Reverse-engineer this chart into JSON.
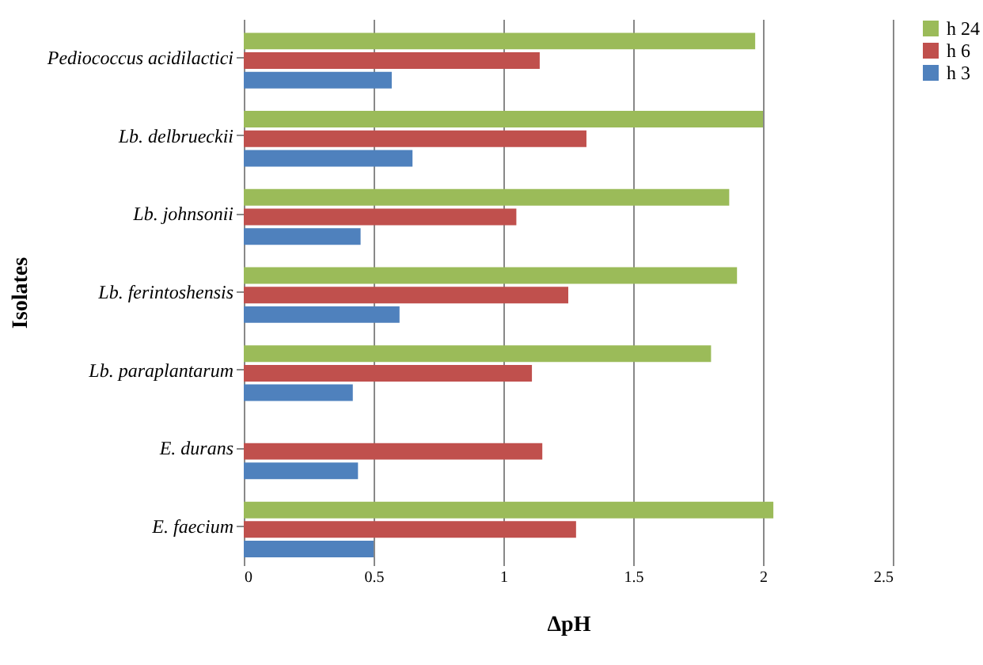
{
  "chart_data": {
    "type": "bar",
    "orientation": "horizontal",
    "xlabel": "ΔpH",
    "ylabel": "Isolates",
    "categories": [
      "Pediococcus acidilactici",
      "Lb. delbrueckii",
      "Lb. johnsonii",
      "Lb. ferintoshensis",
      "Lb. paraplantarum",
      "E. durans",
      "E. faecium"
    ],
    "series": [
      {
        "name": "h 24",
        "color": "#9bbb59",
        "values": [
          1.97,
          2.0,
          1.87,
          1.9,
          1.8,
          null,
          2.04
        ]
      },
      {
        "name": "h 6",
        "color": "#c0504d",
        "values": [
          1.14,
          1.32,
          1.05,
          1.25,
          1.11,
          1.15,
          1.28
        ]
      },
      {
        "name": "h 3",
        "color": "#4f81bd",
        "values": [
          0.57,
          0.65,
          0.45,
          0.6,
          0.42,
          0.44,
          0.5
        ]
      }
    ],
    "xlim": [
      0,
      2.5
    ],
    "xticks": [
      0,
      0.5,
      1,
      1.5,
      2,
      2.5
    ],
    "grid": "x",
    "legend": "right"
  }
}
